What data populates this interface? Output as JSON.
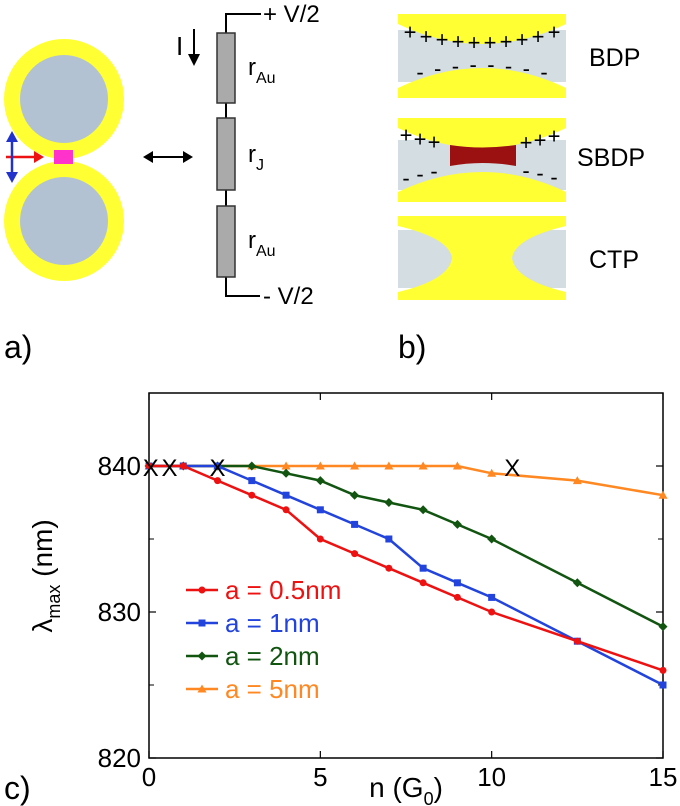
{
  "panel_a": {
    "label": "a)",
    "current_label": "I",
    "voltage_top": "+ V/2",
    "voltage_bottom": "- V/2",
    "resistors": [
      {
        "base": "r",
        "sub": "Au"
      },
      {
        "base": "r",
        "sub": "J"
      },
      {
        "base": "r",
        "sub": "Au"
      }
    ],
    "colors": {
      "shell": "#ffff33",
      "core": "#b3c2d2",
      "junction": "#ff33cc",
      "arrow_red": "#ee1111",
      "arrow_blue": "#2233cc",
      "resistor": "#aaaaaa"
    }
  },
  "panel_b": {
    "label": "b)",
    "modes": [
      {
        "name": "BDP",
        "top_signs": [
          "+",
          "+",
          "+",
          "+",
          "+",
          "+",
          "+",
          "+",
          "+",
          "+"
        ],
        "bottom_signs": [
          "-",
          "-",
          "-",
          "-",
          "-",
          "-",
          "-",
          "-"
        ]
      },
      {
        "name": "SBDP",
        "top_signs": [
          "+",
          "+",
          "+",
          "+",
          "+",
          "+"
        ],
        "bottom_signs": [
          "-",
          "-",
          "-",
          "-",
          "-",
          "-"
        ]
      },
      {
        "name": "CTP",
        "top_signs": [],
        "bottom_signs": []
      }
    ],
    "colors": {
      "gold": "#ffff33",
      "gap": "#d4dde1",
      "bridge": "#9b1111"
    }
  },
  "panel_c": {
    "label": "c)",
    "chart_data": {
      "type": "line",
      "xlabel": {
        "base": "n (G",
        "sub": "0",
        "tail": ")"
      },
      "ylabel": {
        "base": "λ",
        "sub": "max",
        "tail": " (nm)"
      },
      "xlim": [
        0,
        15
      ],
      "ylim": [
        820,
        845
      ],
      "xticks": [
        0,
        5,
        10,
        15
      ],
      "yticks": [
        820,
        830,
        840
      ],
      "legend_position": "bottom-left",
      "series": [
        {
          "name": "a = 0.5nm",
          "color": "#ee1111",
          "marker": "circle",
          "x": [
            0,
            1,
            2,
            3,
            4,
            5,
            6,
            7,
            8,
            9,
            10,
            12.5,
            15
          ],
          "y": [
            840,
            840,
            839,
            838,
            837,
            835,
            834,
            833,
            832,
            831,
            830,
            828,
            826
          ]
        },
        {
          "name": "a = 1nm",
          "color": "#2244dd",
          "marker": "square",
          "x": [
            0,
            1,
            2,
            3,
            4,
            5,
            6,
            7,
            8,
            9,
            10,
            12.5,
            15
          ],
          "y": [
            840,
            840,
            840,
            839,
            838,
            837,
            836,
            835,
            833,
            832,
            831,
            828,
            825
          ]
        },
        {
          "name": "a = 2nm",
          "color": "#115511",
          "marker": "diamond",
          "x": [
            0,
            1,
            2,
            3,
            4,
            5,
            6,
            7,
            8,
            9,
            10,
            12.5,
            15
          ],
          "y": [
            840,
            840,
            840,
            840,
            839.5,
            839,
            838,
            837.5,
            837,
            836,
            835,
            832,
            829
          ]
        },
        {
          "name": "a = 5nm",
          "color": "#ff8822",
          "marker": "triangle",
          "x": [
            0,
            1,
            2,
            3,
            4,
            5,
            6,
            7,
            8,
            9,
            10,
            12.5,
            15
          ],
          "y": [
            840,
            840,
            840,
            840,
            840,
            840,
            840,
            840,
            840,
            840,
            839.5,
            839,
            838
          ]
        }
      ],
      "annotations": [
        {
          "text": "X",
          "x": 0.05,
          "y": 840
        },
        {
          "text": "X",
          "x": 0.6,
          "y": 840
        },
        {
          "text": "X",
          "x": 2.0,
          "y": 840
        },
        {
          "text": "X",
          "x": 10.6,
          "y": 840
        }
      ]
    }
  }
}
